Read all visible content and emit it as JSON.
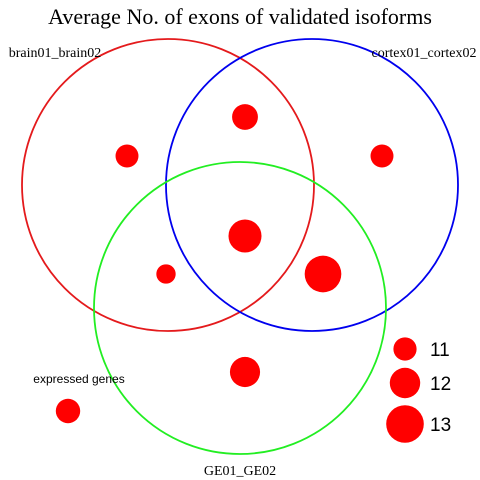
{
  "chart_data": {
    "type": "scatter",
    "title": "Average No. of exons of validated isoforms",
    "sets": [
      {
        "name": "brain01_brain02",
        "color": "#e41a1c"
      },
      {
        "name": "cortex01_cortex02",
        "color": "#0000ee"
      },
      {
        "name": "GE01_GE02",
        "color": "#22ee22"
      }
    ],
    "point_color": "#ff0000",
    "regions": [
      {
        "region": "brain01_brain02 only",
        "value": 11.8
      },
      {
        "region": "brain01_brain02 ∩ cortex01_cortex02",
        "value": 12.2
      },
      {
        "region": "cortex01_cortex02 only",
        "value": 11.8
      },
      {
        "region": "brain01_brain02 ∩ cortex01_cortex02 ∩ GE01_GE02",
        "value": 13.2
      },
      {
        "region": "brain01_brain02 ∩ GE01_GE02",
        "value": 11.3
      },
      {
        "region": "cortex01_cortex02 ∩ GE01_GE02",
        "value": 13.7
      },
      {
        "region": "GE01_GE02 only",
        "value": 12.8
      },
      {
        "region": "expressed genes",
        "value": 12.0
      }
    ],
    "outside_label": "expressed genes",
    "size_legend": [
      {
        "label": "11",
        "value": 11
      },
      {
        "label": "12",
        "value": 12
      },
      {
        "label": "13",
        "value": 13
      }
    ]
  }
}
